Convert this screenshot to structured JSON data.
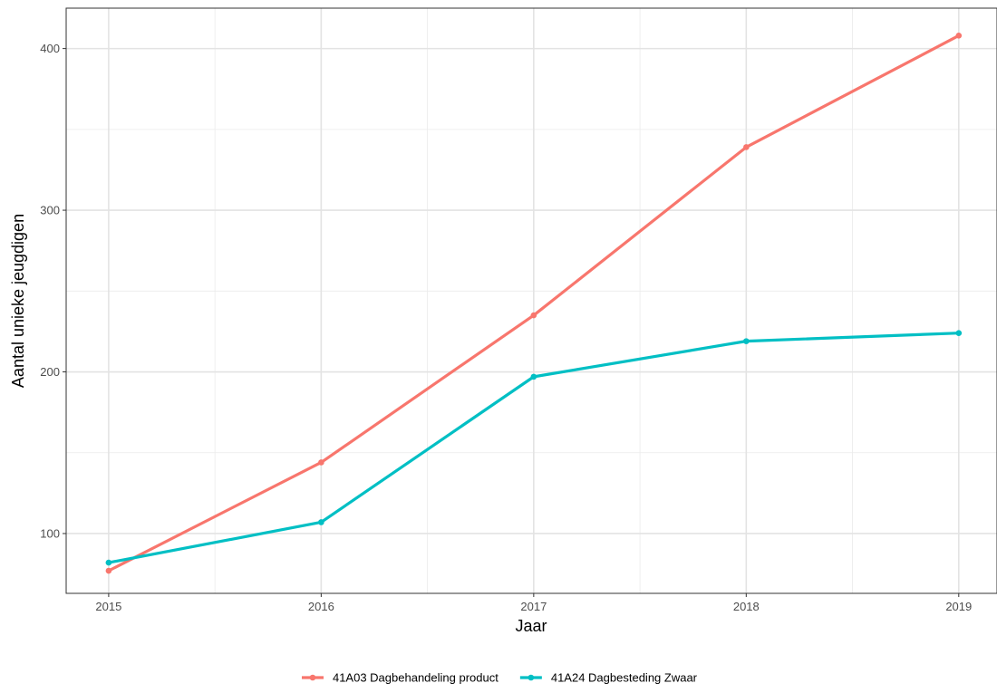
{
  "chart_data": {
    "type": "line",
    "title": "",
    "xlabel": "Jaar",
    "ylabel": "Aantal unieke jeugdigen",
    "x": [
      2015,
      2016,
      2017,
      2018,
      2019
    ],
    "xlim": [
      2014.8,
      2019.18
    ],
    "ylim": [
      63,
      425
    ],
    "x_ticks": [
      2015,
      2016,
      2017,
      2018,
      2019
    ],
    "y_ticks": [
      100,
      200,
      300,
      400
    ],
    "grid": true,
    "legend_position": "bottom",
    "series": [
      {
        "name": "41A03 Dagbehandeling product",
        "color": "#F8766D",
        "values": [
          77,
          144,
          235,
          339,
          408
        ]
      },
      {
        "name": "41A24 Dagbesteding Zwaar",
        "color": "#00BFC4",
        "values": [
          82,
          107,
          197,
          219,
          224
        ]
      }
    ]
  }
}
